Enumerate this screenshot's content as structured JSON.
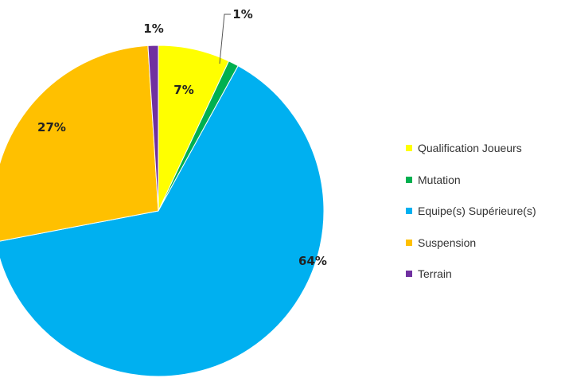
{
  "chart_data": {
    "type": "pie",
    "start_angle_deg": 0,
    "direction": "clockwise",
    "slices": [
      {
        "label": "Qualification Joueurs",
        "value": 7,
        "display": "7%",
        "color": "#FFFF00"
      },
      {
        "label": "Mutation",
        "value": 1,
        "display": "1%",
        "color": "#00B050"
      },
      {
        "label": "Equipe(s) Supérieure(s)",
        "value": 64,
        "display": "64%",
        "color": "#00B0F0"
      },
      {
        "label": "Suspension",
        "value": 27,
        "display": "27%",
        "color": "#FFC000"
      },
      {
        "label": "Terrain",
        "value": 1,
        "display": "1%",
        "color": "#7030A0"
      }
    ],
    "legend_position": "right"
  }
}
